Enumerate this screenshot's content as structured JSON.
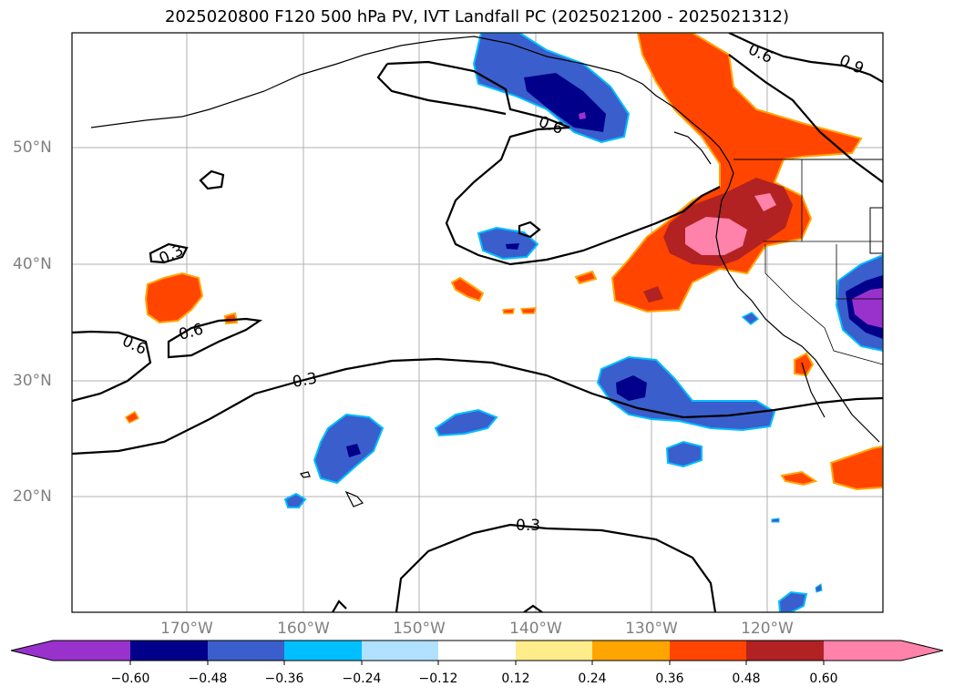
{
  "title": "2025020800 F120 500 hPa PV, IVT Landfall PC (2025021200 - 2025021312)",
  "map": {
    "lat_labels": [
      "50°N",
      "40°N",
      "30°N",
      "20°N"
    ],
    "lon_labels": [
      "170°W",
      "160°W",
      "150°W",
      "140°W",
      "130°W",
      "120°W"
    ],
    "contour_labels": [
      "0.6",
      "0.9",
      "0.6",
      "0.3",
      "0.6",
      "0.6",
      "0.3",
      "0.3"
    ]
  },
  "colorbar": {
    "ticks": [
      "−0.60",
      "−0.48",
      "−0.36",
      "−0.24",
      "−0.12",
      "0.12",
      "0.24",
      "0.36",
      "0.48",
      "0.60"
    ],
    "colors": [
      "#9932CC",
      "#00008B",
      "#3A5FCD",
      "#00BFFF",
      "#B0E2FF",
      "#FFFFFF",
      "#FFEC8B",
      "#FFA500",
      "#FF4500",
      "#B22222",
      "#FF82AB"
    ]
  }
}
